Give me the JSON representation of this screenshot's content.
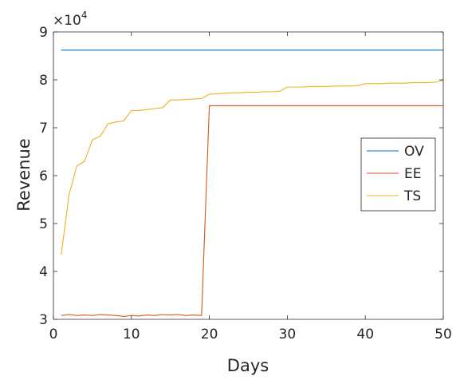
{
  "chart_data": {
    "type": "line",
    "xlabel": "Days",
    "ylabel": "Revenue",
    "exponent_label": "×10",
    "exponent_power": "4",
    "xlim": [
      0,
      50
    ],
    "ylim": [
      3,
      9
    ],
    "xticks": [
      0,
      10,
      20,
      30,
      40,
      50
    ],
    "yticks": [
      3,
      4,
      5,
      6,
      7,
      8,
      9
    ],
    "grid": false,
    "legend_position": "right",
    "series": [
      {
        "name": "OV",
        "color": "#0072BD",
        "x": [
          1,
          50
        ],
        "values": [
          8.62,
          8.62
        ]
      },
      {
        "name": "EE",
        "color": "#D95319",
        "x": [
          1,
          2,
          3,
          4,
          5,
          6,
          7,
          8,
          9,
          10,
          11,
          12,
          13,
          14,
          15,
          16,
          17,
          18,
          19,
          20,
          21,
          22,
          23,
          24,
          25,
          26,
          27,
          28,
          29,
          30,
          31,
          32,
          33,
          34,
          35,
          36,
          37,
          38,
          39,
          40,
          41,
          42,
          43,
          44,
          45,
          46,
          47,
          48,
          49,
          50
        ],
        "values": [
          3.08,
          3.1,
          3.08,
          3.09,
          3.08,
          3.1,
          3.09,
          3.08,
          3.06,
          3.08,
          3.07,
          3.09,
          3.08,
          3.1,
          3.09,
          3.1,
          3.08,
          3.09,
          3.08,
          7.46,
          7.46,
          7.46,
          7.46,
          7.46,
          7.46,
          7.46,
          7.46,
          7.46,
          7.46,
          7.46,
          7.46,
          7.46,
          7.46,
          7.46,
          7.46,
          7.46,
          7.46,
          7.46,
          7.46,
          7.46,
          7.46,
          7.46,
          7.46,
          7.46,
          7.46,
          7.46,
          7.46,
          7.46,
          7.46,
          7.46
        ]
      },
      {
        "name": "TS",
        "color": "#EDB120",
        "x": [
          1,
          2,
          3,
          4,
          5,
          6,
          7,
          8,
          9,
          10,
          11,
          12,
          13,
          14,
          15,
          16,
          17,
          18,
          19,
          20,
          21,
          22,
          23,
          24,
          25,
          26,
          27,
          28,
          29,
          30,
          31,
          32,
          33,
          34,
          35,
          36,
          37,
          38,
          39,
          40,
          41,
          42,
          43,
          44,
          45,
          46,
          47,
          48,
          49,
          50
        ],
        "values": [
          4.35,
          5.6,
          6.2,
          6.3,
          6.75,
          6.82,
          7.08,
          7.12,
          7.14,
          7.36,
          7.36,
          7.38,
          7.4,
          7.42,
          7.58,
          7.58,
          7.59,
          7.6,
          7.61,
          7.7,
          7.71,
          7.72,
          7.73,
          7.73,
          7.74,
          7.74,
          7.75,
          7.75,
          7.76,
          7.85,
          7.85,
          7.85,
          7.86,
          7.86,
          7.86,
          7.87,
          7.87,
          7.87,
          7.88,
          7.92,
          7.92,
          7.92,
          7.93,
          7.93,
          7.93,
          7.94,
          7.94,
          7.94,
          7.95,
          7.99
        ]
      }
    ]
  }
}
